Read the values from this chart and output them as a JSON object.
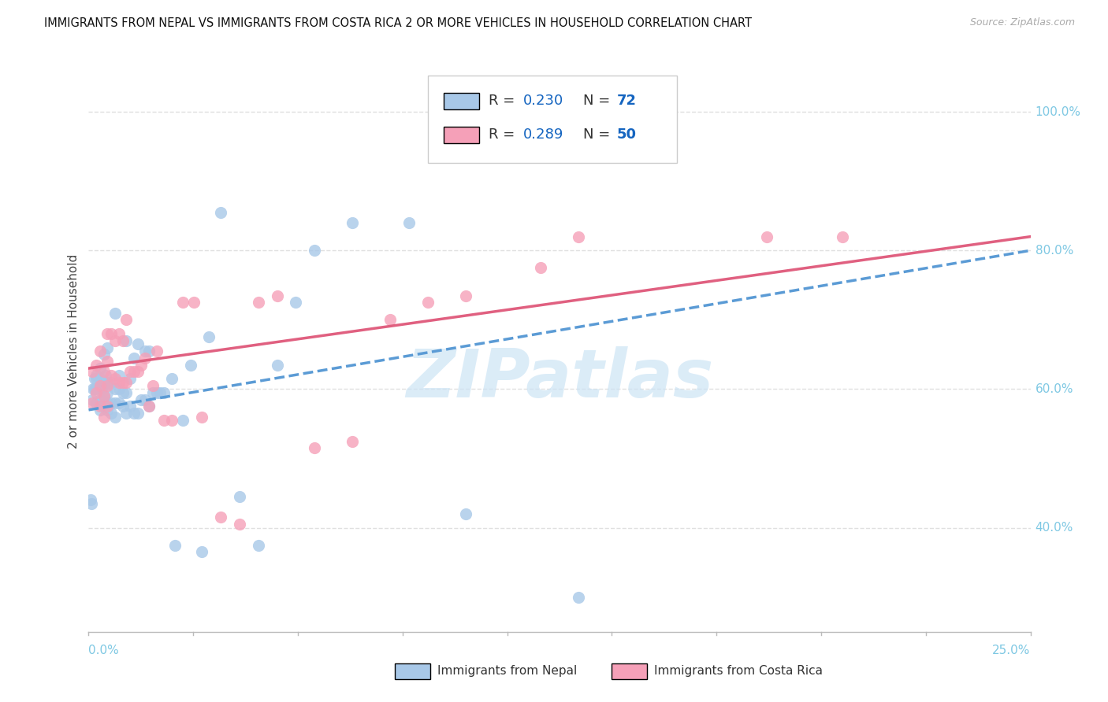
{
  "title": "IMMIGRANTS FROM NEPAL VS IMMIGRANTS FROM COSTA RICA 2 OR MORE VEHICLES IN HOUSEHOLD CORRELATION CHART",
  "source": "Source: ZipAtlas.com",
  "ylabel": "2 or more Vehicles in Household",
  "ytick_labels": [
    "100.0%",
    "80.0%",
    "60.0%",
    "40.0%"
  ],
  "ytick_values": [
    1.0,
    0.8,
    0.6,
    0.4
  ],
  "xmin": 0.0,
  "xmax": 0.25,
  "ymin": 0.25,
  "ymax": 1.06,
  "nepal_R": 0.23,
  "nepal_N": 72,
  "costarica_R": 0.289,
  "costarica_N": 50,
  "nepal_color": "#a8c8e8",
  "costarica_color": "#f5a0b8",
  "nepal_line_color": "#5b9bd5",
  "costarica_line_color": "#e06080",
  "right_axis_color": "#7ec8e3",
  "legend_text_color": "#1565c0",
  "watermark_color": "#cce4f5",
  "background_color": "#ffffff",
  "grid_color": "#e0e0e0",
  "nepal_scatter_x": [
    0.0005,
    0.0008,
    0.001,
    0.0012,
    0.0015,
    0.0015,
    0.002,
    0.002,
    0.002,
    0.002,
    0.003,
    0.003,
    0.003,
    0.003,
    0.003,
    0.0035,
    0.004,
    0.004,
    0.004,
    0.004,
    0.0045,
    0.005,
    0.005,
    0.005,
    0.005,
    0.005,
    0.006,
    0.006,
    0.006,
    0.007,
    0.007,
    0.007,
    0.007,
    0.008,
    0.008,
    0.008,
    0.009,
    0.009,
    0.01,
    0.01,
    0.01,
    0.011,
    0.011,
    0.012,
    0.012,
    0.013,
    0.013,
    0.014,
    0.015,
    0.015,
    0.016,
    0.016,
    0.017,
    0.018,
    0.019,
    0.02,
    0.022,
    0.023,
    0.025,
    0.027,
    0.03,
    0.032,
    0.035,
    0.04,
    0.045,
    0.05,
    0.055,
    0.06,
    0.07,
    0.085,
    0.1,
    0.13
  ],
  "nepal_scatter_y": [
    0.44,
    0.435,
    0.585,
    0.6,
    0.6,
    0.615,
    0.58,
    0.6,
    0.615,
    0.62,
    0.57,
    0.585,
    0.6,
    0.615,
    0.63,
    0.6,
    0.575,
    0.59,
    0.61,
    0.65,
    0.62,
    0.57,
    0.58,
    0.595,
    0.61,
    0.66,
    0.565,
    0.58,
    0.61,
    0.56,
    0.58,
    0.6,
    0.71,
    0.58,
    0.6,
    0.62,
    0.575,
    0.595,
    0.565,
    0.595,
    0.67,
    0.575,
    0.615,
    0.565,
    0.645,
    0.565,
    0.665,
    0.585,
    0.585,
    0.655,
    0.575,
    0.655,
    0.595,
    0.595,
    0.595,
    0.595,
    0.615,
    0.375,
    0.555,
    0.635,
    0.365,
    0.675,
    0.855,
    0.445,
    0.375,
    0.635,
    0.725,
    0.8,
    0.84,
    0.84,
    0.42,
    0.3
  ],
  "costarica_scatter_x": [
    0.001,
    0.001,
    0.002,
    0.002,
    0.003,
    0.003,
    0.003,
    0.004,
    0.004,
    0.004,
    0.005,
    0.005,
    0.005,
    0.005,
    0.006,
    0.006,
    0.007,
    0.007,
    0.008,
    0.008,
    0.009,
    0.009,
    0.01,
    0.01,
    0.011,
    0.012,
    0.013,
    0.014,
    0.015,
    0.016,
    0.017,
    0.018,
    0.02,
    0.022,
    0.025,
    0.028,
    0.03,
    0.035,
    0.04,
    0.045,
    0.05,
    0.06,
    0.07,
    0.08,
    0.09,
    0.1,
    0.12,
    0.13,
    0.18,
    0.2
  ],
  "costarica_scatter_y": [
    0.58,
    0.625,
    0.595,
    0.635,
    0.575,
    0.605,
    0.655,
    0.56,
    0.59,
    0.625,
    0.575,
    0.605,
    0.64,
    0.68,
    0.62,
    0.68,
    0.615,
    0.67,
    0.61,
    0.68,
    0.61,
    0.67,
    0.61,
    0.7,
    0.625,
    0.625,
    0.625,
    0.635,
    0.645,
    0.575,
    0.605,
    0.655,
    0.555,
    0.555,
    0.725,
    0.725,
    0.56,
    0.415,
    0.405,
    0.725,
    0.735,
    0.515,
    0.525,
    0.7,
    0.725,
    0.735,
    0.775,
    0.82,
    0.82,
    0.82
  ]
}
